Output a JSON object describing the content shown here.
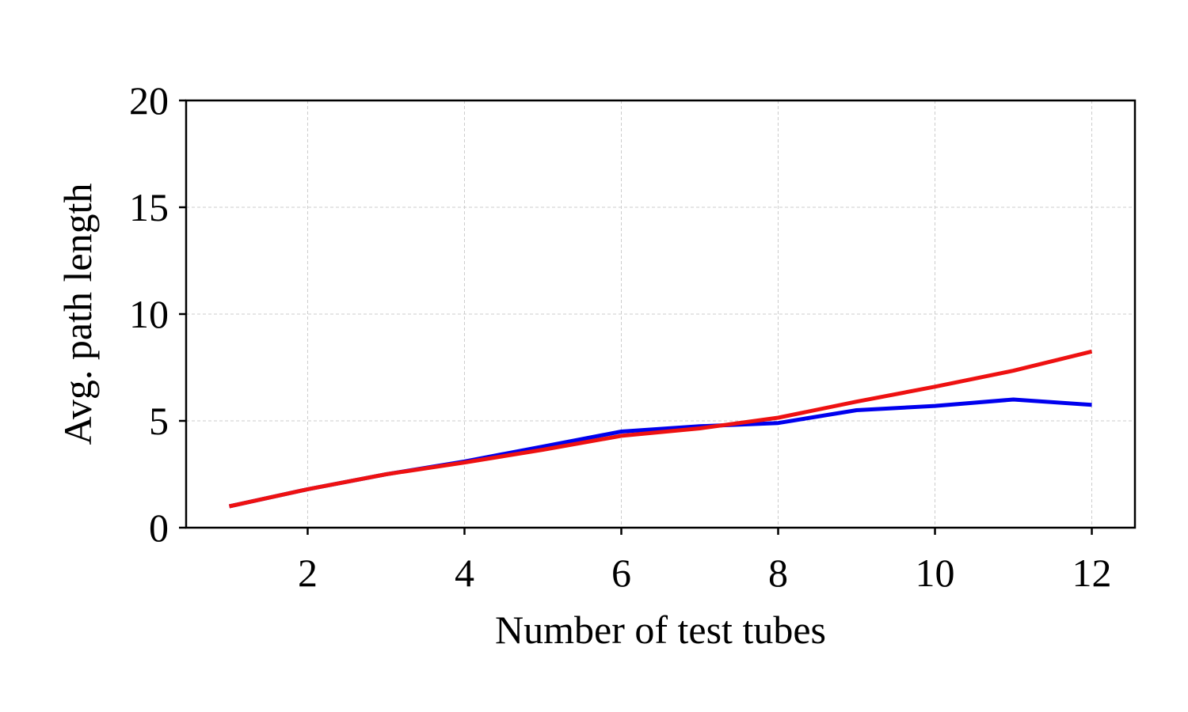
{
  "chart_data": {
    "type": "line",
    "title": "",
    "xlabel": "Number of test tubes",
    "ylabel": "Avg. path length",
    "xlim": [
      0.45,
      12.55
    ],
    "ylim": [
      0,
      20
    ],
    "xticks": [
      2,
      4,
      6,
      8,
      10,
      12
    ],
    "yticks": [
      0,
      5,
      10,
      15,
      20
    ],
    "grid": true,
    "legend": "none",
    "x": [
      1,
      2,
      3,
      4,
      5,
      6,
      7,
      8,
      9,
      10,
      11,
      12
    ],
    "series": [
      {
        "color": "#0000ee",
        "values": [
          1.0,
          1.8,
          2.5,
          3.1,
          3.8,
          4.5,
          4.75,
          4.9,
          5.5,
          5.7,
          6.0,
          5.75
        ]
      },
      {
        "color": "#ee1111",
        "values": [
          1.0,
          1.8,
          2.5,
          3.05,
          3.65,
          4.3,
          4.65,
          5.15,
          5.9,
          6.6,
          7.35,
          8.25
        ]
      }
    ]
  }
}
